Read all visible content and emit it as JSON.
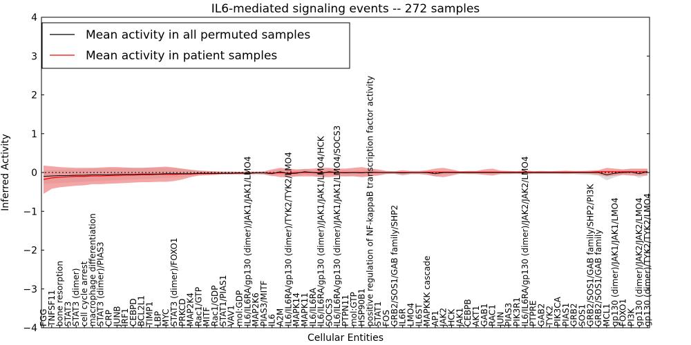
{
  "chart_data": {
    "type": "line",
    "title": "IL6-mediated signaling events -- 272 samples",
    "xlabel": "Cellular Entities",
    "ylabel": "Inferred Activity",
    "ylim": [
      -4,
      4
    ],
    "yticks": [
      -4,
      -3,
      -2,
      -1,
      0,
      1,
      2,
      3,
      4
    ],
    "ytick_labels": [
      "−4",
      "−3",
      "−2",
      "−1",
      "0",
      "1",
      "2",
      "3",
      "4"
    ],
    "legend": {
      "location": "top-left",
      "entries": [
        {
          "label": "Mean activity in all permuted samples",
          "color": "#000000"
        },
        {
          "label": "Mean activity in patient samples",
          "color": "#ff0000"
        }
      ]
    },
    "colors": {
      "patient_line": "#ff0000",
      "patient_band": "#f08080",
      "permuted_line": "#000000",
      "permuted_band": "#bbbbbb",
      "zero_line": "#000000"
    },
    "categories": [
      "FGG",
      "TNFSF11",
      "bone resorption",
      "STAT3",
      "STAT3 (dimer)",
      "cell cycle arrest",
      "macrophage differentiation",
      "STAT3 (dimer)/PIAS3",
      "CRP",
      "JUNB",
      "IRF1",
      "CEBPD",
      "BCL2L1",
      "TIMP1",
      "LBP",
      "MYC",
      "STAT3 (dimer)/FOXO1",
      "PRKCD",
      "MAP2K4",
      "Rac1/GTP",
      "MITF",
      "Rac1/GDP",
      "STAT1/PIAS1",
      "VAV1",
      "mol:GDP",
      "IL6/IL6RA/gp130 (dimer)/JAK1/JAK1/LMO4",
      "MAP2K6",
      "PIAS3/MITF",
      "IL6",
      "A2M",
      "IL6/IL6RA/gp130 (dimer)/TYK2/TYK2/LMO4",
      "MAPK14",
      "MAPK11",
      "IL6/IL6RA",
      "IL6/IL6RA/gp130 (dimer)/JAK1/JAK1/LMO4/HCK",
      "SOCS3",
      "IL6/IL6RA/gp130 (dimer)/JAK1/JAK1/LMO4/SOCS3",
      "PTPN11",
      "mol:GTP",
      "HSP90B1",
      "positive regulation of NF-kappaB transcription factor activity",
      "STAT1",
      "FOS",
      "GRB2/SOS1/GAB family/SHP2",
      "IL6R",
      "LMO4",
      "IL6ST",
      "MAPKKK cascade",
      "AP1",
      "JAK2",
      "HCK",
      "JAK1",
      "CEBPB",
      "AKT1",
      "GAB1",
      "RAC1",
      "JUN",
      "PIAS3",
      "PIK3R1",
      "IL6/IL6RA/gp130 (dimer)/JAK2/JAK2/LMO4",
      "PTPRE",
      "GAB2",
      "TYK2",
      "PIK3CA",
      "PIAS1",
      "GRB2",
      "SOS1",
      "GRB2/SOS1/GAB family/SHP2/PI3K",
      "GRB2/SOS1/GAB family",
      "MCL1",
      "gp130 (dimer)/JAK1/JAK1/LMO4",
      "FOXO1",
      "PI3K",
      "gp130 (dimer)/JAK2/JAK2/LMO4",
      "gp130 (dimer)/TYK2/TYK2/LMO4"
    ],
    "series": [
      {
        "name": "Mean activity in patient samples",
        "values": [
          -0.18,
          -0.14,
          -0.12,
          -0.11,
          -0.1,
          -0.1,
          -0.09,
          -0.09,
          -0.08,
          -0.08,
          -0.07,
          -0.07,
          -0.06,
          -0.06,
          -0.05,
          -0.05,
          -0.05,
          -0.04,
          -0.04,
          -0.03,
          -0.03,
          -0.03,
          -0.02,
          -0.02,
          -0.02,
          -0.02,
          -0.01,
          -0.01,
          -0.01,
          -0.01,
          -0.01,
          0.0,
          0.0,
          0.0,
          0.0,
          0.0,
          0.0,
          0.0,
          0.0,
          0.0,
          0.0,
          0.0,
          0.0,
          0.0,
          0.0,
          0.0,
          0.0,
          0.01,
          0.01,
          0.01,
          0.01,
          0.01,
          0.01,
          0.01,
          0.01,
          0.01,
          0.01,
          0.01,
          0.01,
          0.01,
          0.01,
          0.01,
          0.01,
          0.01,
          0.01,
          0.01,
          0.01,
          0.01,
          0.02,
          0.02,
          0.02,
          0.02,
          0.02,
          0.02,
          0.02
        ],
        "upper": [
          0.18,
          0.16,
          0.14,
          0.13,
          0.12,
          0.12,
          0.12,
          0.13,
          0.14,
          0.14,
          0.13,
          0.12,
          0.12,
          0.13,
          0.14,
          0.15,
          0.13,
          0.1,
          0.07,
          0.05,
          0.04,
          0.03,
          0.02,
          0.02,
          0.02,
          0.02,
          0.02,
          0.03,
          0.08,
          0.12,
          0.1,
          0.08,
          0.09,
          0.1,
          0.12,
          0.12,
          0.1,
          0.1,
          0.12,
          0.14,
          0.1,
          0.08,
          0.04,
          0.03,
          0.06,
          0.04,
          0.04,
          0.06,
          0.1,
          0.12,
          0.08,
          0.03,
          0.04,
          0.04,
          0.08,
          0.1,
          0.05,
          0.04,
          0.03,
          0.06,
          0.03,
          0.04,
          0.03,
          0.04,
          0.05,
          0.04,
          0.04,
          0.05,
          0.06,
          0.12,
          0.1,
          0.08,
          0.1,
          0.1,
          0.1
        ],
        "lower": [
          -0.55,
          -0.42,
          -0.38,
          -0.36,
          -0.34,
          -0.33,
          -0.3,
          -0.3,
          -0.29,
          -0.28,
          -0.27,
          -0.26,
          -0.25,
          -0.25,
          -0.24,
          -0.24,
          -0.22,
          -0.18,
          -0.12,
          -0.08,
          -0.07,
          -0.06,
          -0.05,
          -0.05,
          -0.05,
          -0.05,
          -0.04,
          -0.05,
          -0.08,
          -0.12,
          -0.12,
          -0.1,
          -0.1,
          -0.1,
          -0.12,
          -0.12,
          -0.1,
          -0.1,
          -0.1,
          -0.12,
          -0.1,
          -0.08,
          -0.04,
          -0.03,
          -0.06,
          -0.04,
          -0.04,
          -0.06,
          -0.1,
          -0.12,
          -0.08,
          -0.03,
          -0.04,
          -0.04,
          -0.06,
          -0.08,
          -0.04,
          -0.04,
          -0.03,
          -0.05,
          -0.03,
          -0.03,
          -0.03,
          -0.03,
          -0.04,
          -0.03,
          -0.03,
          -0.04,
          -0.06,
          -0.1,
          -0.08,
          -0.06,
          -0.08,
          -0.08,
          -0.08
        ]
      },
      {
        "name": "Mean activity in all permuted samples",
        "values": [
          -0.1,
          -0.09,
          -0.08,
          -0.08,
          -0.07,
          -0.07,
          -0.06,
          -0.06,
          -0.06,
          -0.05,
          -0.05,
          -0.05,
          -0.04,
          -0.04,
          -0.04,
          -0.03,
          -0.03,
          -0.03,
          -0.03,
          -0.02,
          -0.02,
          -0.02,
          -0.02,
          -0.02,
          -0.01,
          -0.02,
          -0.01,
          -0.01,
          -0.03,
          0.02,
          -0.03,
          -0.02,
          0.02,
          0.0,
          -0.02,
          0.02,
          0.0,
          -0.01,
          0.0,
          -0.01,
          0.01,
          0.0,
          0.0,
          0.0,
          -0.01,
          0.0,
          0.0,
          0.0,
          -0.03,
          0.0,
          0.0,
          0.0,
          0.0,
          0.0,
          0.0,
          0.0,
          0.0,
          0.0,
          0.0,
          0.0,
          0.0,
          0.0,
          0.0,
          0.0,
          0.0,
          0.0,
          0.0,
          0.0,
          0.0,
          -0.06,
          -0.02,
          0.0,
          0.01,
          -0.03,
          0.02
        ],
        "upper": [
          0.05,
          0.06,
          0.07,
          0.08,
          0.08,
          0.09,
          0.1,
          0.1,
          0.11,
          0.11,
          0.12,
          0.12,
          0.12,
          0.12,
          0.12,
          0.12,
          0.11,
          0.09,
          0.07,
          0.05,
          0.04,
          0.03,
          0.03,
          0.03,
          0.02,
          0.03,
          0.03,
          0.03,
          0.04,
          0.08,
          0.05,
          0.06,
          0.1,
          0.05,
          0.06,
          0.1,
          0.05,
          0.06,
          0.05,
          0.06,
          0.08,
          0.04,
          0.03,
          0.03,
          0.04,
          0.03,
          0.03,
          0.03,
          0.03,
          0.04,
          0.03,
          0.03,
          0.03,
          0.03,
          0.03,
          0.03,
          0.03,
          0.03,
          0.03,
          0.03,
          0.03,
          0.03,
          0.03,
          0.03,
          0.03,
          0.03,
          0.04,
          0.04,
          0.05,
          0.05,
          0.06,
          0.07,
          0.08,
          0.08,
          0.09
        ],
        "lower": [
          -0.3,
          -0.28,
          -0.27,
          -0.26,
          -0.25,
          -0.24,
          -0.23,
          -0.22,
          -0.21,
          -0.2,
          -0.19,
          -0.18,
          -0.17,
          -0.16,
          -0.15,
          -0.14,
          -0.13,
          -0.11,
          -0.09,
          -0.07,
          -0.06,
          -0.06,
          -0.05,
          -0.05,
          -0.04,
          -0.05,
          -0.05,
          -0.05,
          -0.1,
          -0.05,
          -0.12,
          -0.1,
          -0.06,
          -0.08,
          -0.12,
          -0.06,
          -0.08,
          -0.1,
          -0.08,
          -0.1,
          -0.06,
          -0.05,
          -0.04,
          -0.04,
          -0.08,
          -0.04,
          -0.04,
          -0.05,
          -0.1,
          -0.05,
          -0.04,
          -0.04,
          -0.04,
          -0.04,
          -0.04,
          -0.04,
          -0.04,
          -0.04,
          -0.04,
          -0.04,
          -0.04,
          -0.04,
          -0.04,
          -0.04,
          -0.04,
          -0.04,
          -0.06,
          -0.06,
          -0.08,
          -0.2,
          -0.12,
          -0.06,
          -0.05,
          -0.14,
          -0.06
        ]
      }
    ]
  }
}
